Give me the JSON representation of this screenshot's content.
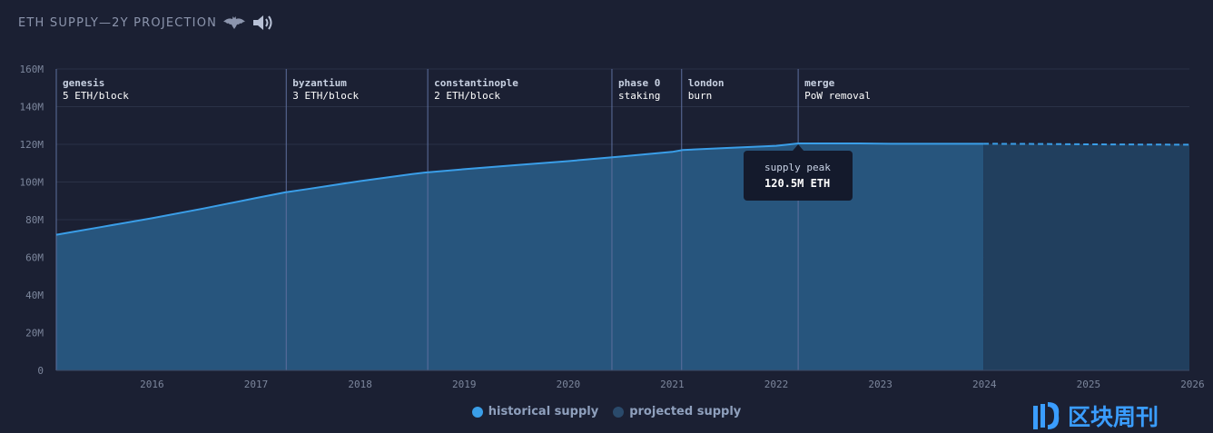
{
  "title": "ETH SUPPLY—2Y PROJECTION",
  "icons": [
    "bat-icon",
    "speaker-icon"
  ],
  "colors": {
    "background": "#1b2033",
    "historical_fill": "#27557d",
    "projected_fill": "#213f5e",
    "line": "#3a9ee8",
    "grid": "#2a3147",
    "annotation_line": "#5e6f9e",
    "axis_text": "#7c869c",
    "annotation_title": "#c8d1e2",
    "annotation_sub": "#ffffff"
  },
  "chart_data": {
    "type": "area",
    "y_ticks": [
      "0",
      "20M",
      "40M",
      "60M",
      "80M",
      "100M",
      "120M",
      "140M",
      "160M"
    ],
    "ylim": [
      0,
      160
    ],
    "x_ticks": [
      "2016",
      "2017",
      "2018",
      "2019",
      "2020",
      "2021",
      "2022",
      "2023",
      "2024",
      "2025",
      "2026"
    ],
    "xlim": [
      2015.58,
      2026.47
    ],
    "grid": "horizontal",
    "legend_placement": "bottom-center",
    "series": [
      {
        "name": "historical supply",
        "style": "solid",
        "x": [
          2015.58,
          2016.0,
          2016.5,
          2017.0,
          2017.5,
          2017.78,
          2018.0,
          2018.5,
          2019.0,
          2019.12,
          2019.5,
          2020.0,
          2020.5,
          2021.0,
          2021.5,
          2021.6,
          2022.0,
          2022.5,
          2022.71,
          2023.0,
          2023.3,
          2023.6,
          2024.0,
          2024.49
        ],
        "y": [
          72.0,
          76.0,
          80.8,
          86.0,
          91.5,
          94.5,
          96.3,
          100.5,
          104.2,
          105.0,
          106.8,
          109.0,
          111.1,
          113.5,
          116.0,
          117.0,
          118.0,
          119.2,
          120.5,
          120.5,
          120.5,
          120.3,
          120.3,
          120.3
        ]
      },
      {
        "name": "projected supply",
        "style": "dashed",
        "x": [
          2024.49,
          2025.0,
          2025.5,
          2026.0,
          2026.47
        ],
        "y": [
          120.3,
          120.2,
          120.0,
          119.9,
          119.8
        ]
      }
    ],
    "annotations": [
      {
        "x": 2015.58,
        "title": "genesis",
        "sub": "5 ETH/block"
      },
      {
        "x": 2017.79,
        "title": "byzantium",
        "sub": "3 ETH/block"
      },
      {
        "x": 2019.15,
        "title": "constantinople",
        "sub": "2 ETH/block"
      },
      {
        "x": 2020.92,
        "title": "phase 0",
        "sub": "staking"
      },
      {
        "x": 2021.59,
        "title": "london",
        "sub": "burn"
      },
      {
        "x": 2022.71,
        "title": "merge",
        "sub": "PoW removal"
      }
    ],
    "tooltip": {
      "x": 2022.71,
      "y": 120.5,
      "label": "supply peak",
      "value": "120.5M ETH"
    }
  },
  "legend": [
    {
      "label": "historical supply",
      "color": "#3a9ee8"
    },
    {
      "label": "projected supply",
      "color": "#2a4a6b"
    }
  ],
  "watermark": {
    "text": "区块周刊"
  }
}
